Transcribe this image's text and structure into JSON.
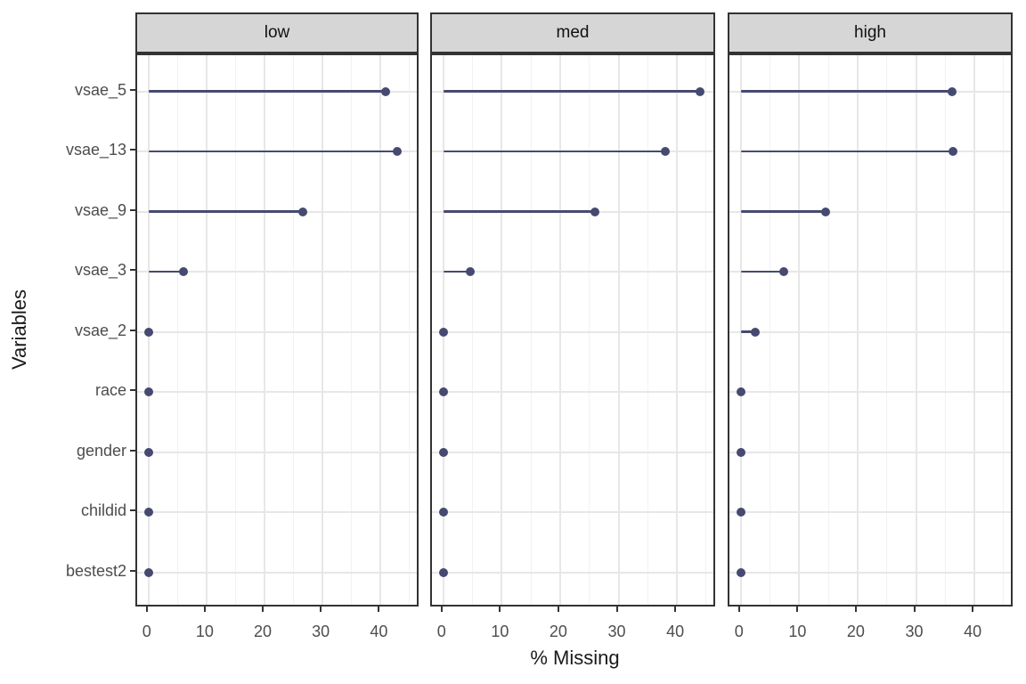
{
  "chart_data": {
    "type": "bar",
    "variant": "horizontal-lollipop",
    "title": "",
    "xlabel": "% Missing",
    "ylabel": "Variables",
    "facet_labels": [
      "low",
      "med",
      "high"
    ],
    "categories": [
      "vsae_5",
      "vsae_13",
      "vsae_9",
      "vsae_3",
      "vsae_2",
      "race",
      "gender",
      "childid",
      "bestest2"
    ],
    "series": [
      {
        "name": "low",
        "values": [
          40.8,
          42.8,
          26.6,
          6.1,
          0,
          0,
          0,
          0,
          0
        ]
      },
      {
        "name": "med",
        "values": [
          44.0,
          38.0,
          25.9,
          4.6,
          0,
          0,
          0,
          0,
          0
        ]
      },
      {
        "name": "high",
        "values": [
          36.2,
          36.4,
          14.5,
          7.3,
          2.4,
          0,
          0,
          0,
          0
        ]
      }
    ],
    "x_ticks": [
      0,
      10,
      20,
      30,
      40
    ],
    "x_minor_ticks": [
      5,
      15,
      25,
      35,
      45
    ],
    "xlim": [
      -1.95,
      46.85
    ],
    "grid": true,
    "legend": "none",
    "colors": {
      "accent": "#464a71",
      "strip_bg": "#d6d6d6",
      "panel_border": "#333333",
      "grid_major": "#e7e7e7",
      "grid_minor": "#f2f2f2",
      "tick_text": "#4d4d4d",
      "axis_title_text": "#1a1a1a"
    }
  }
}
